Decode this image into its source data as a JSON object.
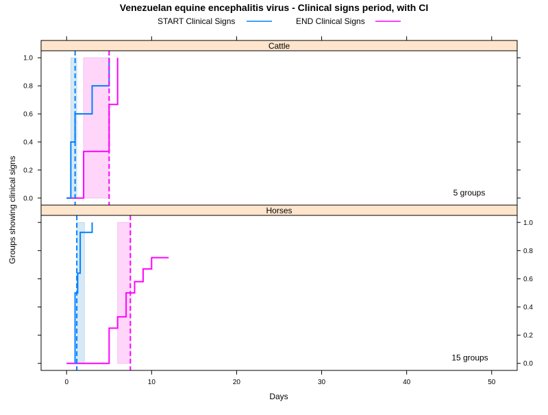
{
  "chart_data": {
    "type": "line",
    "title": "Venezuelan equine encephalitis virus - Clinical signs period, with CI",
    "xlabel": "Days",
    "ylabel": "Groups showing clinical signs",
    "xlim": [
      -3,
      53
    ],
    "ylim": [
      -0.05,
      1.05
    ],
    "x_ticks": [
      "0",
      "10",
      "20",
      "30",
      "40",
      "50"
    ],
    "y_ticks": [
      "0.0",
      "0.2",
      "0.4",
      "0.6",
      "0.8",
      "1.0"
    ],
    "legend": {
      "placement": "top",
      "items": [
        {
          "label": "START Clinical Signs",
          "color": "#0080ff"
        },
        {
          "label": "END Clinical Signs",
          "color": "#ff00ff"
        }
      ]
    },
    "colors": {
      "start": "#0080ff",
      "end": "#ff00ff",
      "start_ci_fill": "#d6e9f5",
      "end_ci_fill": "#ffd6fa",
      "strip_fill": "#ffe5cc"
    },
    "panels": [
      {
        "name": "Cattle",
        "groups_label": "5 groups",
        "y_axis_side": "left",
        "start_curve": {
          "x": [
            0,
            0.5,
            0.5,
            1,
            1,
            3,
            3,
            5,
            5
          ],
          "y": [
            0,
            0,
            0.4,
            0.4,
            0.6,
            0.6,
            0.8,
            0.8,
            1.0
          ]
        },
        "end_curve": {
          "x": [
            0,
            2,
            2,
            5,
            5,
            6,
            6
          ],
          "y": [
            0,
            0,
            0.333,
            0.333,
            0.667,
            0.667,
            1.0
          ]
        },
        "start_mean": 1.0,
        "end_mean": 5.0,
        "start_ci": [
          0.5,
          1.2
        ],
        "end_ci": [
          2.0,
          5.0
        ]
      },
      {
        "name": "Horses",
        "groups_label": "15 groups",
        "y_axis_side": "right",
        "start_curve": {
          "x": [
            1,
            1,
            1.3,
            1.3,
            1.6,
            1.6,
            2.1,
            2.1,
            3,
            3
          ],
          "y": [
            0,
            0.5,
            0.5,
            0.64,
            0.64,
            0.93,
            0.93,
            0.93,
            0.93,
            1.0
          ]
        },
        "end_curve": {
          "x": [
            0,
            5,
            5,
            6,
            6,
            7,
            7,
            8,
            8,
            9,
            9,
            10,
            10,
            12
          ],
          "y": [
            0,
            0,
            0.25,
            0.25,
            0.33,
            0.33,
            0.5,
            0.5,
            0.58,
            0.58,
            0.67,
            0.67,
            0.75,
            0.75
          ]
        },
        "start_mean": 1.2,
        "end_mean": 7.5,
        "start_ci": [
          1.2,
          2.1
        ],
        "end_ci": [
          6.0,
          7.5
        ]
      }
    ]
  }
}
